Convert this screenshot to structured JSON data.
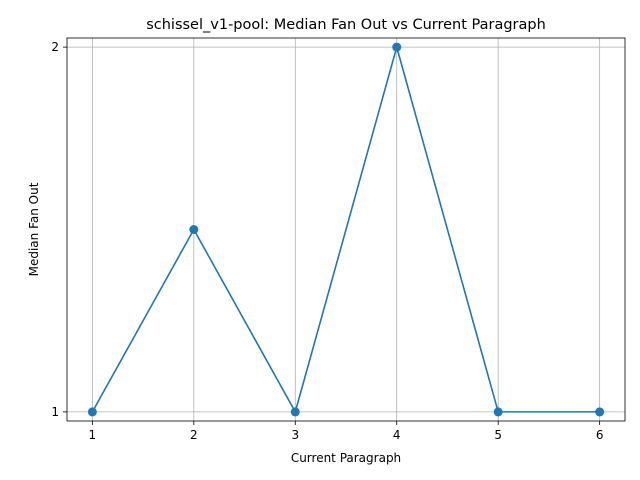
{
  "chart_data": {
    "type": "line",
    "title": "schissel_v1-pool: Median Fan Out vs Current Paragraph",
    "xlabel": "Current Paragraph",
    "ylabel": "Median Fan Out",
    "x": [
      1,
      2,
      3,
      4,
      5,
      6
    ],
    "series": [
      {
        "values": [
          1,
          1.5,
          1,
          2,
          1,
          1
        ]
      }
    ],
    "xticks": [
      1,
      2,
      3,
      4,
      5,
      6
    ],
    "yticks": [
      1,
      2
    ],
    "xlim": [
      0.75,
      6.25
    ],
    "ylim": [
      0.975,
      2.025
    ],
    "grid": true,
    "markers": true,
    "colors": {
      "series": "#1f77b4"
    }
  }
}
